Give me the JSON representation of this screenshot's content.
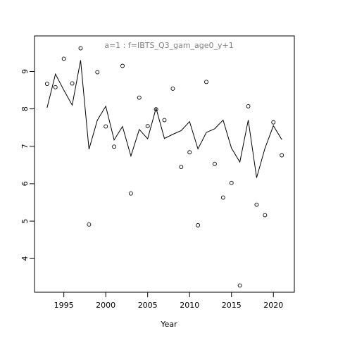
{
  "chart_data": {
    "type": "scatter",
    "title": "a=1  :  f=IBTS_Q3_gam_age0_y+1",
    "xlabel": "Year",
    "ylabel": "",
    "xlim": [
      1991.5,
      2022.5
    ],
    "ylim": [
      3.1,
      9.95
    ],
    "xticks": [
      1995,
      2000,
      2005,
      2010,
      2015,
      2020
    ],
    "yticks": [
      4,
      5,
      6,
      7,
      8,
      9
    ],
    "title_color": "#808080",
    "grid": false,
    "legend": "none",
    "series": [
      {
        "type": "points",
        "x": [
          1993,
          1994,
          1995,
          1996,
          1997,
          1998,
          1999,
          2000,
          2001,
          2002,
          2003,
          2004,
          2005,
          2006,
          2007,
          2008,
          2009,
          2010,
          2011,
          2012,
          2013,
          2014,
          2015,
          2016,
          2017,
          2018,
          2019,
          2020,
          2021
        ],
        "y": [
          8.67,
          8.58,
          9.34,
          8.68,
          9.62,
          4.91,
          8.98,
          7.53,
          6.99,
          9.15,
          5.74,
          8.3,
          7.54,
          7.99,
          7.7,
          8.54,
          6.45,
          6.84,
          4.89,
          8.72,
          6.53,
          5.63,
          6.02,
          3.28,
          8.07,
          5.44,
          5.16,
          7.64,
          6.76
        ]
      },
      {
        "type": "line",
        "x": [
          1993,
          1994,
          1995,
          1996,
          1997,
          1998,
          1999,
          2000,
          2001,
          2002,
          2003,
          2004,
          2005,
          2006,
          2007,
          2008,
          2009,
          2010,
          2011,
          2012,
          2013,
          2014,
          2015,
          2016,
          2017,
          2018,
          2019,
          2020,
          2021
        ],
        "y": [
          8.03,
          8.93,
          8.5,
          8.1,
          9.3,
          6.92,
          7.7,
          8.07,
          7.17,
          7.53,
          6.74,
          7.45,
          7.2,
          8.02,
          7.21,
          7.32,
          7.42,
          7.66,
          6.93,
          7.37,
          7.47,
          7.7,
          6.95,
          6.58,
          7.7,
          6.16,
          6.95,
          7.55,
          7.18
        ]
      }
    ]
  }
}
